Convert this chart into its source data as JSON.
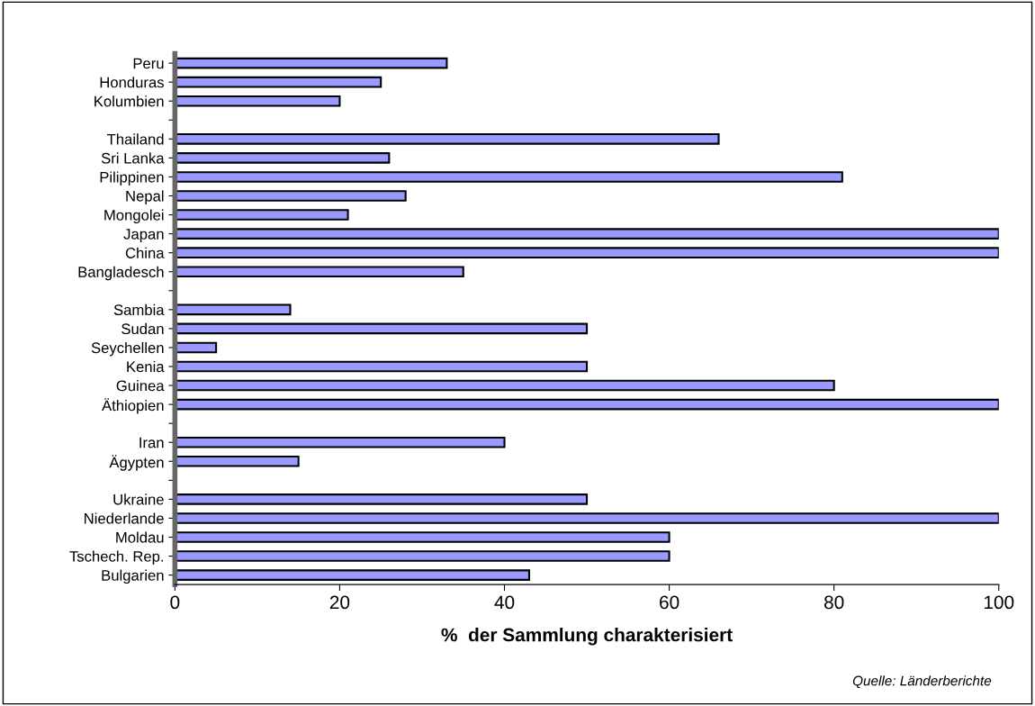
{
  "chart_data": {
    "type": "bar",
    "orientation": "horizontal",
    "categories": [
      "Peru",
      "Honduras",
      "Kolumbien",
      null,
      "Thailand",
      "Sri Lanka",
      "Pilippinen",
      "Nepal",
      "Mongolei",
      "Japan",
      "China",
      "Bangladesch",
      null,
      "Sambia",
      "Sudan",
      "Seychellen",
      "Kenia",
      "Guinea",
      "Äthiopien",
      null,
      "Iran",
      "Ägypten",
      null,
      "Ukraine",
      "Niederlande",
      "Moldau",
      "Tschech. Rep.",
      "Bulgarien"
    ],
    "values": [
      33,
      25,
      20,
      null,
      66,
      26,
      81,
      28,
      21,
      100,
      100,
      35,
      null,
      14,
      50,
      5,
      50,
      80,
      100,
      null,
      40,
      15,
      null,
      50,
      100,
      60,
      60,
      43
    ],
    "color": "#9999ff",
    "xlabel": "%  der Sammlung charakterisiert",
    "xlim": [
      0,
      100
    ],
    "xticks": [
      0,
      20,
      40,
      60,
      80,
      100
    ],
    "grid": false,
    "annotations": [
      "Quelle: Länderberichte"
    ]
  }
}
